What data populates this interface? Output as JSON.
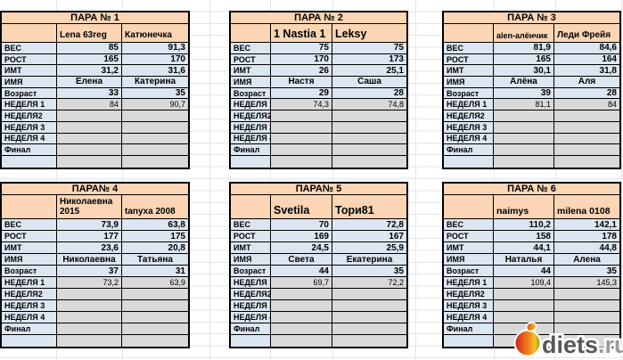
{
  "tables": [
    {
      "title": "ПАРА № 1",
      "members": [
        "Lena 63reg",
        "Катюнечка"
      ],
      "rows": [
        {
          "label": "ВЕС",
          "values": [
            "85",
            "91,3"
          ]
        },
        {
          "label": "РОСТ",
          "values": [
            "165",
            "170"
          ]
        },
        {
          "label": "ИМТ",
          "values": [
            "31,2",
            "31,6"
          ]
        },
        {
          "label": "ИМЯ",
          "values": [
            "Елена",
            "Катерина"
          ]
        },
        {
          "label": "Возраст",
          "values": [
            "33",
            "35"
          ]
        },
        {
          "label": "НЕДЕЛЯ 1",
          "values": [
            "84",
            "90,7"
          ]
        },
        {
          "label": "НЕДЕЛЯ2",
          "values": [
            "",
            ""
          ]
        },
        {
          "label": "НЕДЕЛЯ 3",
          "values": [
            "",
            ""
          ]
        },
        {
          "label": "НЕДЕЛЯ 4",
          "values": [
            "",
            ""
          ]
        },
        {
          "label": "Финал",
          "values": [
            "",
            ""
          ]
        },
        {
          "label": "",
          "values": [
            "",
            ""
          ]
        }
      ]
    },
    {
      "title": "ПАРА № 2",
      "members": [
        "1 Nastia 1",
        "Leksy"
      ],
      "rows": [
        {
          "label": "ВЕС",
          "values": [
            "75",
            "75"
          ]
        },
        {
          "label": "РОСТ",
          "values": [
            "170",
            "173"
          ]
        },
        {
          "label": "ИМТ",
          "values": [
            "26",
            "25,1"
          ]
        },
        {
          "label": "ИМЯ",
          "values": [
            "Настя",
            "Саша"
          ]
        },
        {
          "label": "Возраст",
          "values": [
            "29",
            "28"
          ]
        },
        {
          "label": "НЕДЕЛЯ 1",
          "values": [
            "74,3",
            "74,8"
          ]
        },
        {
          "label": "НЕДЕЛЯ2",
          "values": [
            "",
            ""
          ]
        },
        {
          "label": "НЕДЕЛЯ 3",
          "values": [
            "",
            ""
          ]
        },
        {
          "label": "НЕДЕЛЯ 4",
          "values": [
            "",
            ""
          ]
        },
        {
          "label": "Финал",
          "values": [
            "",
            ""
          ]
        },
        {
          "label": "",
          "values": [
            "",
            ""
          ]
        }
      ]
    },
    {
      "title": "ПАРА № 3",
      "members": [
        "alen-алёнчик",
        "Леди Фрейя"
      ],
      "rows": [
        {
          "label": "ВЕС",
          "values": [
            "81,9",
            "84,6"
          ]
        },
        {
          "label": "РОСТ",
          "values": [
            "165",
            "164"
          ]
        },
        {
          "label": "ИМТ",
          "values": [
            "30,1",
            "31,8"
          ]
        },
        {
          "label": "ИМЯ",
          "values": [
            "Алёна",
            "Аля"
          ]
        },
        {
          "label": "Возраст",
          "values": [
            "39",
            "28"
          ]
        },
        {
          "label": "НЕДЕЛЯ 1",
          "values": [
            "81,1",
            "84"
          ]
        },
        {
          "label": "НЕДЕЛЯ2",
          "values": [
            "",
            ""
          ]
        },
        {
          "label": "НЕДЕЛЯ 3",
          "values": [
            "",
            ""
          ]
        },
        {
          "label": "НЕДЕЛЯ 4",
          "values": [
            "",
            ""
          ]
        },
        {
          "label": "Финал",
          "values": [
            "",
            ""
          ]
        },
        {
          "label": "",
          "values": [
            "",
            ""
          ]
        }
      ]
    },
    {
      "title": "ПАРА№ 4",
      "members": [
        "Николаевна 2015",
        "tanyxa 2008"
      ],
      "rows": [
        {
          "label": "ВЕС",
          "values": [
            "73,9",
            "63,8"
          ]
        },
        {
          "label": "РОСТ",
          "values": [
            "177",
            "175"
          ]
        },
        {
          "label": "ИМТ",
          "values": [
            "23,6",
            "20,8"
          ]
        },
        {
          "label": "ИМЯ",
          "values": [
            "Николаевна",
            "Татьяна"
          ]
        },
        {
          "label": "Возраст",
          "values": [
            "37",
            "31"
          ]
        },
        {
          "label": "НЕДЕЛЯ 1",
          "values": [
            "73,2",
            "63,9"
          ]
        },
        {
          "label": "НЕДЕЛЯ2",
          "values": [
            "",
            ""
          ]
        },
        {
          "label": "НЕДЕЛЯ 3",
          "values": [
            "",
            ""
          ]
        },
        {
          "label": "НЕДЕЛЯ 4",
          "values": [
            "",
            ""
          ]
        },
        {
          "label": "Финал",
          "values": [
            "",
            ""
          ]
        },
        {
          "label": "",
          "values": [
            "",
            ""
          ]
        }
      ]
    },
    {
      "title": "ПАРА№ 5",
      "members": [
        "Svetila",
        "Тори81"
      ],
      "rows": [
        {
          "label": "ВЕС",
          "values": [
            "70",
            "72,8"
          ]
        },
        {
          "label": "РОСТ",
          "values": [
            "169",
            "167"
          ]
        },
        {
          "label": "ИМТ",
          "values": [
            "24,5",
            "25,9"
          ]
        },
        {
          "label": "ИМЯ",
          "values": [
            "Света",
            "Екатерина"
          ]
        },
        {
          "label": "Возраст",
          "values": [
            "44",
            "35"
          ]
        },
        {
          "label": "НЕДЕЛЯ 1",
          "values": [
            "69,7",
            "72,2"
          ]
        },
        {
          "label": "НЕДЕЛЯ2",
          "values": [
            "",
            ""
          ]
        },
        {
          "label": "НЕДЕЛЯ 3",
          "values": [
            "",
            ""
          ]
        },
        {
          "label": "НЕДЕЛЯ 4",
          "values": [
            "",
            ""
          ]
        },
        {
          "label": "Финал",
          "values": [
            "",
            ""
          ]
        },
        {
          "label": "",
          "values": [
            "",
            ""
          ]
        }
      ]
    },
    {
      "title": "ПАРА № 6",
      "members": [
        "naimys",
        "milena 0108"
      ],
      "rows": [
        {
          "label": "ВЕС",
          "values": [
            "110,2",
            "142,1"
          ]
        },
        {
          "label": "РОСТ",
          "values": [
            "158",
            "178"
          ]
        },
        {
          "label": "ИМТ",
          "values": [
            "44,1",
            "44,8"
          ]
        },
        {
          "label": "ИМЯ",
          "values": [
            "Наталья",
            "Алена"
          ]
        },
        {
          "label": "Возраст",
          "values": [
            "44",
            "35"
          ]
        },
        {
          "label": "НЕДЕЛЯ 1",
          "values": [
            "109,4",
            "145,3"
          ]
        },
        {
          "label": "НЕДЕЛЯ2",
          "values": [
            "",
            ""
          ]
        },
        {
          "label": "НЕДЕЛЯ 3",
          "values": [
            "",
            ""
          ]
        },
        {
          "label": "НЕДЕЛЯ 4",
          "values": [
            "",
            ""
          ]
        },
        {
          "label": "Финал",
          "values": [
            "",
            ""
          ]
        },
        {
          "label": "",
          "values": [
            "",
            ""
          ]
        }
      ]
    }
  ],
  "logo": {
    "text": "diets",
    "suffix": ".ru"
  },
  "colors": {
    "header_fill": "#fbd5b4",
    "label_fill": "#dce6f1",
    "week_fill": "#d9d9d9",
    "cell_border": "#000000",
    "grid_line": "#e2e5ea",
    "logo_text": "#58585a",
    "logo_suffix": "#9b9b9d",
    "apple_red": "#c82327",
    "apple_orange": "#f0891b",
    "apple_yellow": "#f6c51f",
    "apple_green": "#8cab21"
  }
}
